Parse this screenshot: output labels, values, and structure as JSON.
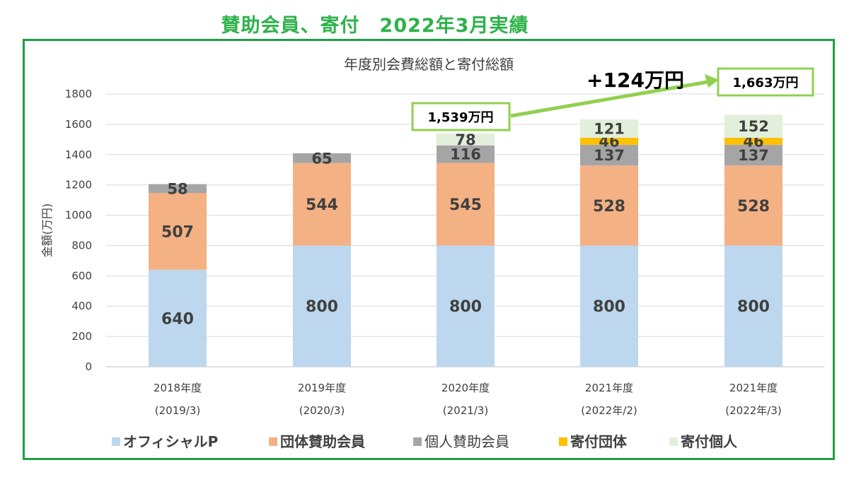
{
  "heading": "賛助会員、寄付　2022年3月実績",
  "chart_data": {
    "type": "bar",
    "stacked": true,
    "title": "年度別会費総額と寄付総額",
    "ylabel": "金額(万円)",
    "xlabel": "",
    "ylim": [
      0,
      1800
    ],
    "yticks": [
      0,
      200,
      400,
      600,
      800,
      1000,
      1200,
      1400,
      1600,
      1800
    ],
    "grid": true,
    "legend_position": "bottom",
    "categories": [
      {
        "line1": "2018年度",
        "line2": "(2019/3)"
      },
      {
        "line1": "2019年度",
        "line2": "(2020/3)"
      },
      {
        "line1": "2020年度",
        "line2": "(2021/3)"
      },
      {
        "line1": "2021年度",
        "line2": "(2022年/2)"
      },
      {
        "line1": "2021年度",
        "line2": "(2022年/3)"
      }
    ],
    "series": [
      {
        "name": "オフィシャルP",
        "color": "#bdd7ee",
        "values": [
          640,
          800,
          800,
          800,
          800
        ]
      },
      {
        "name": "団体賛助会員",
        "color": "#f4b183",
        "values": [
          507,
          544,
          545,
          528,
          528
        ]
      },
      {
        "name": "個人賛助会員",
        "color": "#a5a5a5",
        "values": [
          58,
          65,
          116,
          137,
          137
        ]
      },
      {
        "name": "寄付団体",
        "color": "#ffc000",
        "values": [
          0,
          0,
          0,
          46,
          46
        ]
      },
      {
        "name": "寄付個人",
        "color": "#e2efda",
        "values": [
          0,
          0,
          78,
          121,
          152
        ]
      }
    ],
    "annotations": {
      "total_from": "1,539万円",
      "total_to": "1,663万円",
      "increase": "+124万円"
    }
  }
}
